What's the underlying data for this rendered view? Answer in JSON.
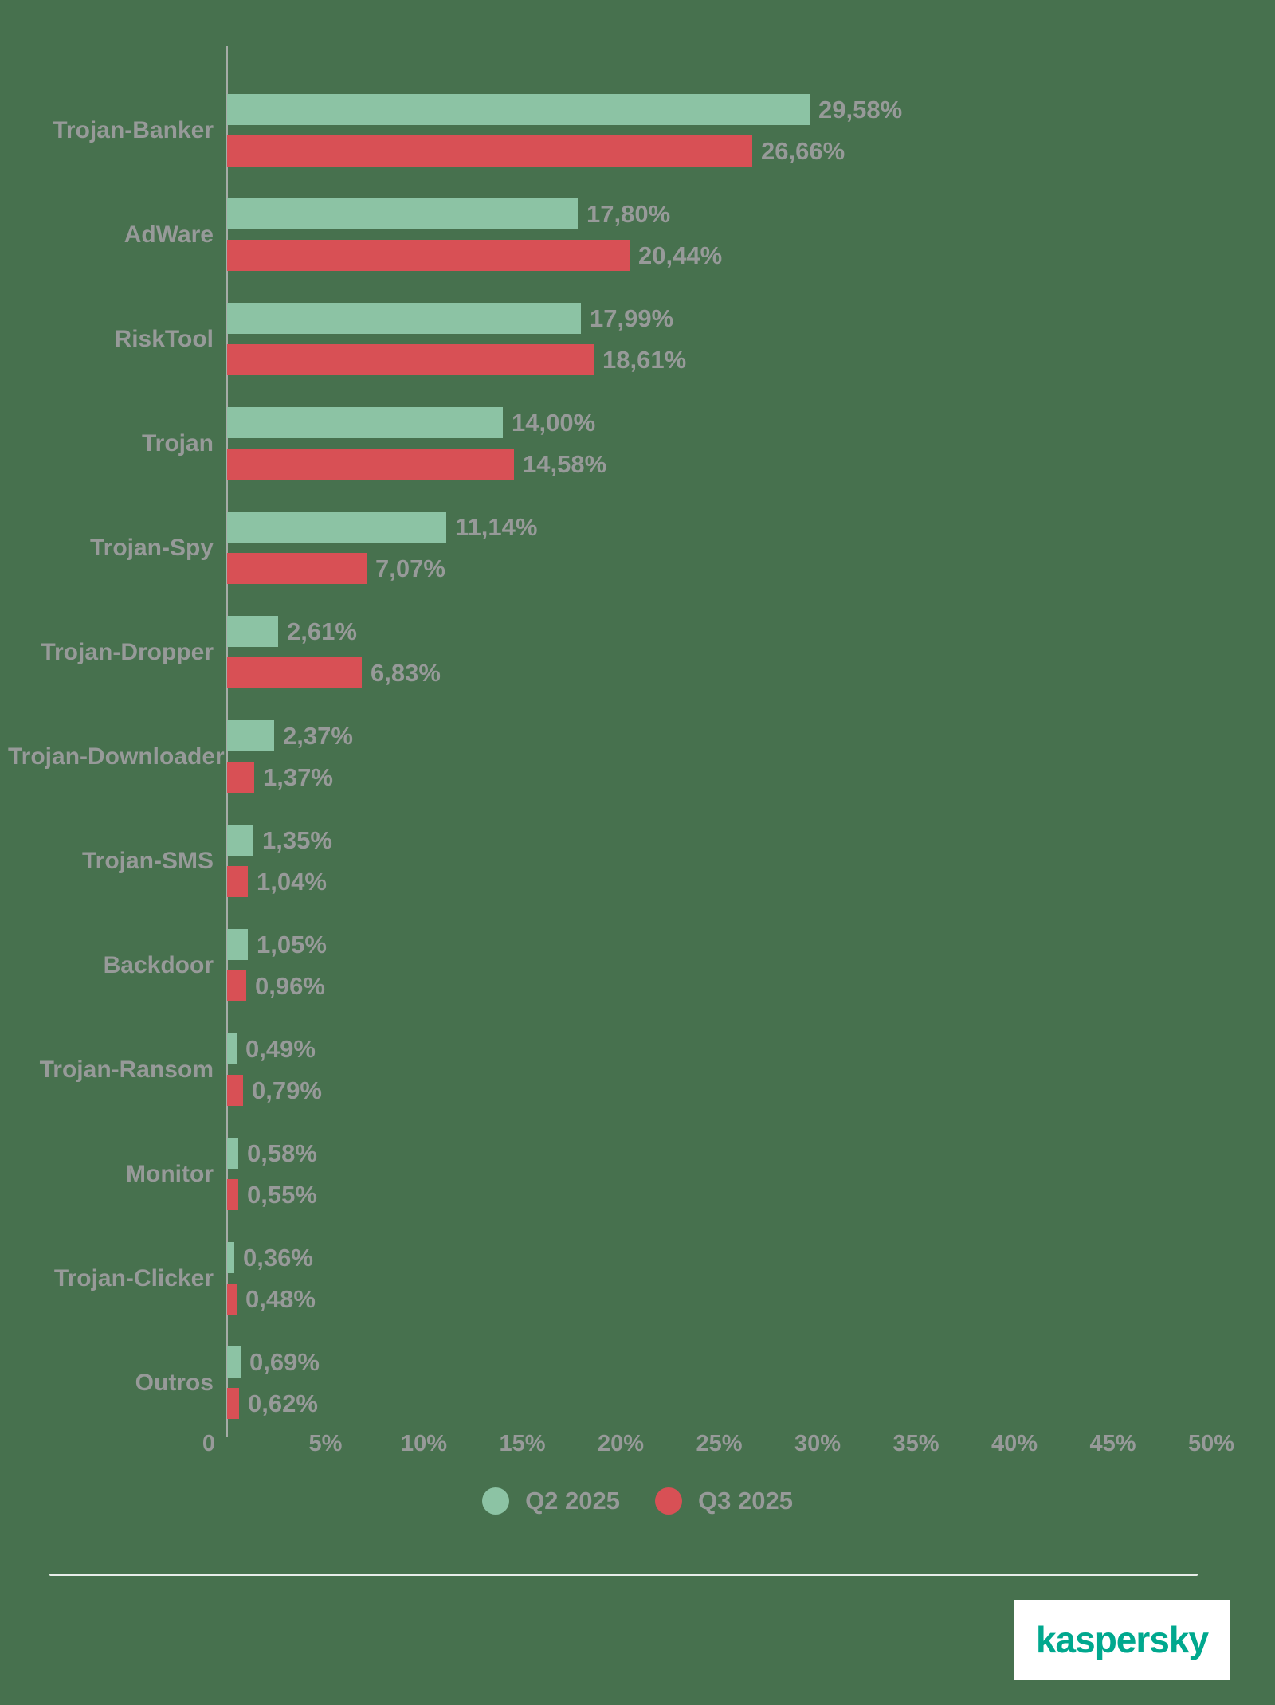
{
  "chart_data": {
    "type": "bar",
    "orientation": "horizontal",
    "title": "",
    "categories": [
      "Trojan-Banker",
      "AdWare",
      "RiskTool",
      "Trojan",
      "Trojan-Spy",
      "Trojan-Dropper",
      "Trojan-Downloader",
      "Trojan-SMS",
      "Backdoor",
      "Trojan-Ransom",
      "Monitor",
      "Trojan-Clicker",
      "Outros"
    ],
    "series": [
      {
        "name": "Q2 2025",
        "color": "#8CC3A4",
        "values": [
          29.58,
          17.8,
          17.99,
          14.0,
          11.14,
          2.61,
          2.37,
          1.35,
          1.05,
          0.49,
          0.58,
          0.36,
          0.69
        ],
        "labels": [
          "29,58%",
          "17,80%",
          "17,99%",
          "14,00%",
          "11,14%",
          "2,61%",
          "2,37%",
          "1,35%",
          "1,05%",
          "0,49%",
          "0,58%",
          "0,36%",
          "0,69%"
        ]
      },
      {
        "name": "Q3 2025",
        "color": "#D85055",
        "values": [
          26.66,
          20.44,
          18.61,
          14.58,
          7.07,
          6.83,
          1.37,
          1.04,
          0.96,
          0.79,
          0.55,
          0.48,
          0.62
        ],
        "labels": [
          "26,66%",
          "20,44%",
          "18,61%",
          "14,58%",
          "7,07%",
          "6,83%",
          "1,37%",
          "1,04%",
          "0,96%",
          "0,79%",
          "0,55%",
          "0,48%",
          "0,62%"
        ]
      }
    ],
    "x_axis": {
      "min": 0,
      "max": 50,
      "tick_step": 5,
      "tick_labels": [
        "0",
        "5%",
        "10%",
        "15%",
        "20%",
        "25%",
        "30%",
        "35%",
        "40%",
        "45%",
        "50%"
      ],
      "grid": false
    },
    "legend": {
      "position": "bottom-center",
      "items": [
        {
          "label": "Q2 2025",
          "color": "#8CC3A4"
        },
        {
          "label": "Q3 2025",
          "color": "#D85055"
        }
      ]
    }
  },
  "colors": {
    "background": "#47714E",
    "bar_green": "#8CC3A4",
    "bar_red": "#D85055",
    "text_gray": "#979A99",
    "axis_line": "#A6ACA7",
    "separator": "#E9EDEA",
    "brand_teal": "#00A88E",
    "brand_box_bg": "#FFFFFF"
  },
  "footer": {
    "brand": "kaspersky"
  }
}
